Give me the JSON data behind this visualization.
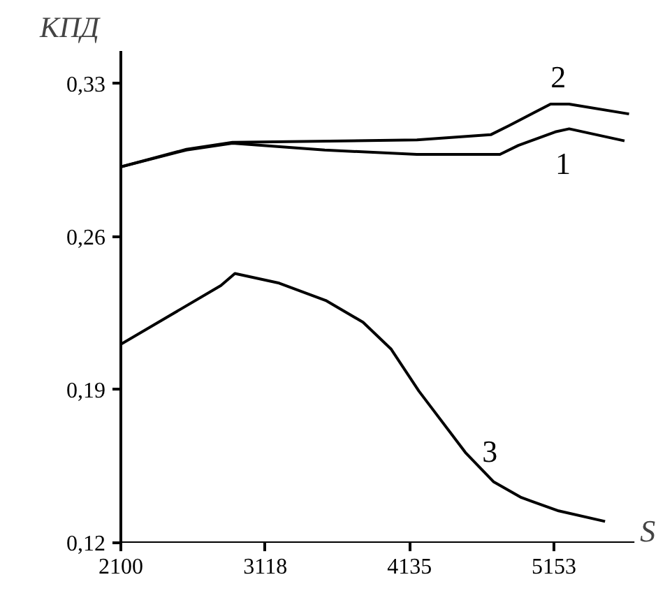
{
  "chart_data": {
    "type": "line",
    "xlabel": "S",
    "ylabel": "КПД",
    "xlim": [
      2100,
      5720
    ],
    "ylim": [
      0.12,
      0.345
    ],
    "xticks": [
      2100,
      3118,
      4135,
      5153
    ],
    "yticks": [
      {
        "value": 0.12,
        "label": "0,12"
      },
      {
        "value": 0.19,
        "label": "0,19"
      },
      {
        "value": 0.26,
        "label": "0,26"
      },
      {
        "value": 0.33,
        "label": "0,33"
      }
    ],
    "grid": false,
    "marker": "none",
    "line_style": "solid",
    "series": [
      {
        "name": "1",
        "color": "#000000",
        "x": [
          2100,
          2562,
          2887,
          3537,
          4187,
          4772,
          4902,
          5162,
          5260,
          5650
        ],
        "values": [
          0.292,
          0.2997,
          0.3028,
          0.2997,
          0.2977,
          0.2977,
          0.3018,
          0.308,
          0.3094,
          0.3039
        ]
      },
      {
        "name": "2",
        "color": "#000000",
        "x": [
          2100,
          2562,
          2887,
          4187,
          4707,
          4837,
          5129,
          5259,
          5682
        ],
        "values": [
          0.292,
          0.3,
          0.3032,
          0.3043,
          0.3067,
          0.3109,
          0.3207,
          0.3207,
          0.3162
        ]
      },
      {
        "name": "3",
        "color": "#000000",
        "x": [
          2100,
          2805,
          2904,
          3216,
          3544,
          3807,
          4004,
          4201,
          4529,
          4726,
          4923,
          5186,
          5513
        ],
        "values": [
          0.2108,
          0.2377,
          0.2432,
          0.2388,
          0.2309,
          0.2209,
          0.2087,
          0.1894,
          0.1613,
          0.148,
          0.1407,
          0.1346,
          0.1298
        ]
      }
    ]
  }
}
